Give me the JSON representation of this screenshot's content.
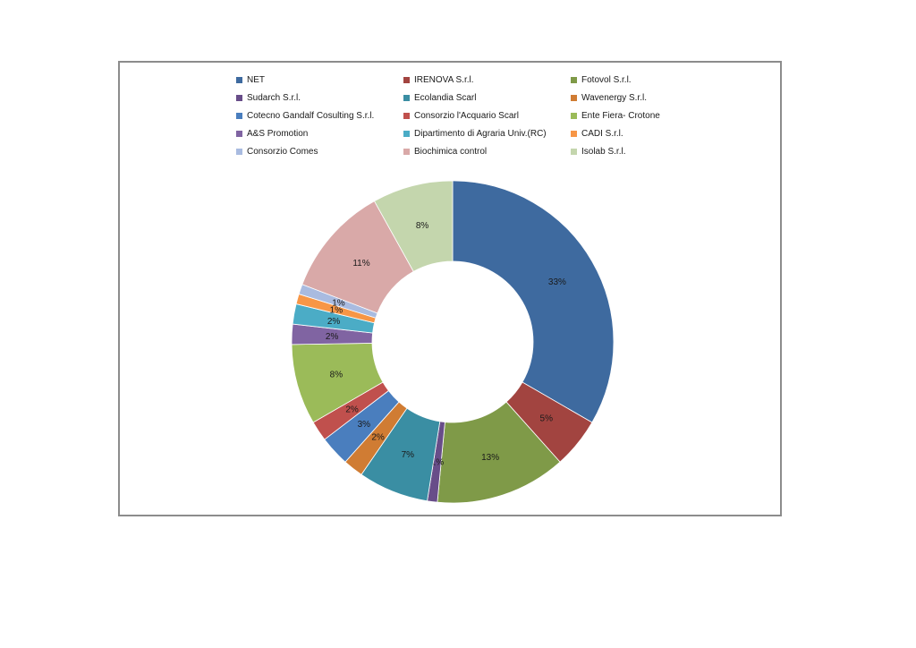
{
  "chart_data": {
    "type": "pie",
    "title": "",
    "donut": true,
    "legend_position": "top",
    "categories": [
      "NET",
      "IRENOVA S.r.l.",
      "Fotovol S.r.l.",
      "Sudarch S.r.l.",
      "Ecolandia Scarl",
      "Wavenergy S.r.l.",
      "Cotecno Gandalf Cosulting S.r.l.",
      "Consorzio l'Acquario Scarl",
      "Ente Fiera- Crotone",
      "A&S Promotion",
      "Dipartimento di Agraria Univ.(RC)",
      "CADI S.r.l.",
      "Consorzio Comes",
      "Biochimica control",
      "Isolab S.r.l."
    ],
    "values": [
      33,
      5,
      13,
      1,
      7,
      2,
      3,
      2,
      8,
      2,
      2,
      1,
      1,
      11,
      8
    ],
    "labels": [
      "33%",
      "5%",
      "13%",
      "1%",
      "7%",
      "2%",
      "3%",
      "2%",
      "8%",
      "2%",
      "2%",
      "1%",
      "1%",
      "11%",
      "8%"
    ],
    "colors": [
      "#3e6a9f",
      "#a24440",
      "#7f9a48",
      "#684d89",
      "#3a8ea3",
      "#d07c33",
      "#4a7ebe",
      "#c0504d",
      "#9bbb59",
      "#8064a2",
      "#4bacc6",
      "#f79646",
      "#a9bbe0",
      "#d9a9a8",
      "#c4d6ad"
    ]
  }
}
